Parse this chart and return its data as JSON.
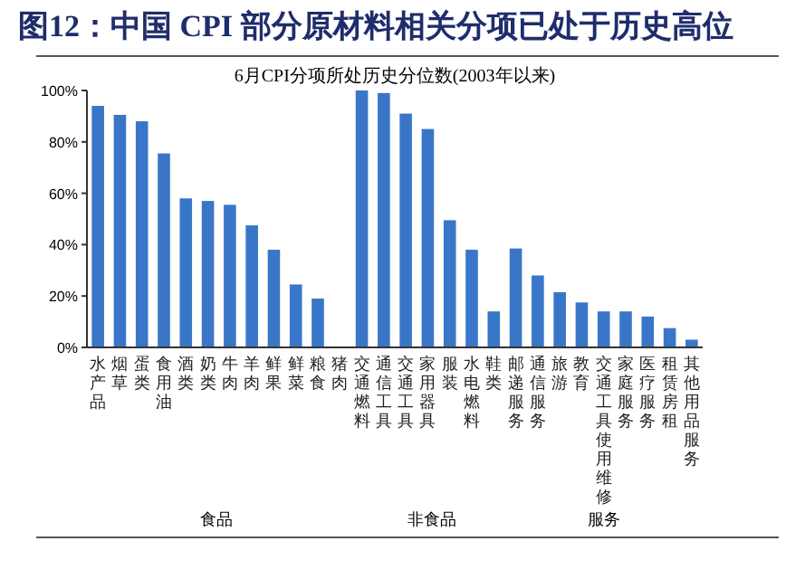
{
  "chart_data": {
    "type": "bar",
    "title": "图12：中国 CPI 部分原材料相关分项已处于历史高位",
    "subtitle": "6月CPI分项所处历史分位数(2003年以来)",
    "categories": [
      "水产品",
      "烟草",
      "蛋类",
      "食用油",
      "酒类",
      "奶类",
      "牛肉",
      "羊肉",
      "鲜果",
      "鲜菜",
      "粮食",
      "猪肉",
      "交通燃料",
      "通信工具",
      "交通工具",
      "家用器具",
      "服装",
      "水电燃料",
      "鞋类",
      "邮递服务",
      "通信服务",
      "旅游",
      "教育",
      "交通工具使用维修",
      "家庭服务",
      "医疗服务",
      "租赁房租",
      "其他用品服务"
    ],
    "values": [
      94,
      90.5,
      88,
      75.5,
      58,
      57,
      55.5,
      47.5,
      38,
      24.5,
      19,
      0,
      100,
      99,
      91,
      85,
      49.5,
      38,
      14,
      38.5,
      28,
      21.5,
      17.5,
      14,
      14,
      12,
      7.5,
      3
    ],
    "color": "#3a76c8",
    "ylim": [
      0,
      100
    ],
    "yticks": [
      {
        "value": 0,
        "label": "0%"
      },
      {
        "value": 20,
        "label": "20%"
      },
      {
        "value": 40,
        "label": "40%"
      },
      {
        "value": 60,
        "label": "60%"
      },
      {
        "value": 80,
        "label": "80%"
      },
      {
        "value": 100,
        "label": "100%"
      }
    ],
    "annotations": [
      "食品",
      "非食品",
      "服务"
    ],
    "grid": false
  }
}
